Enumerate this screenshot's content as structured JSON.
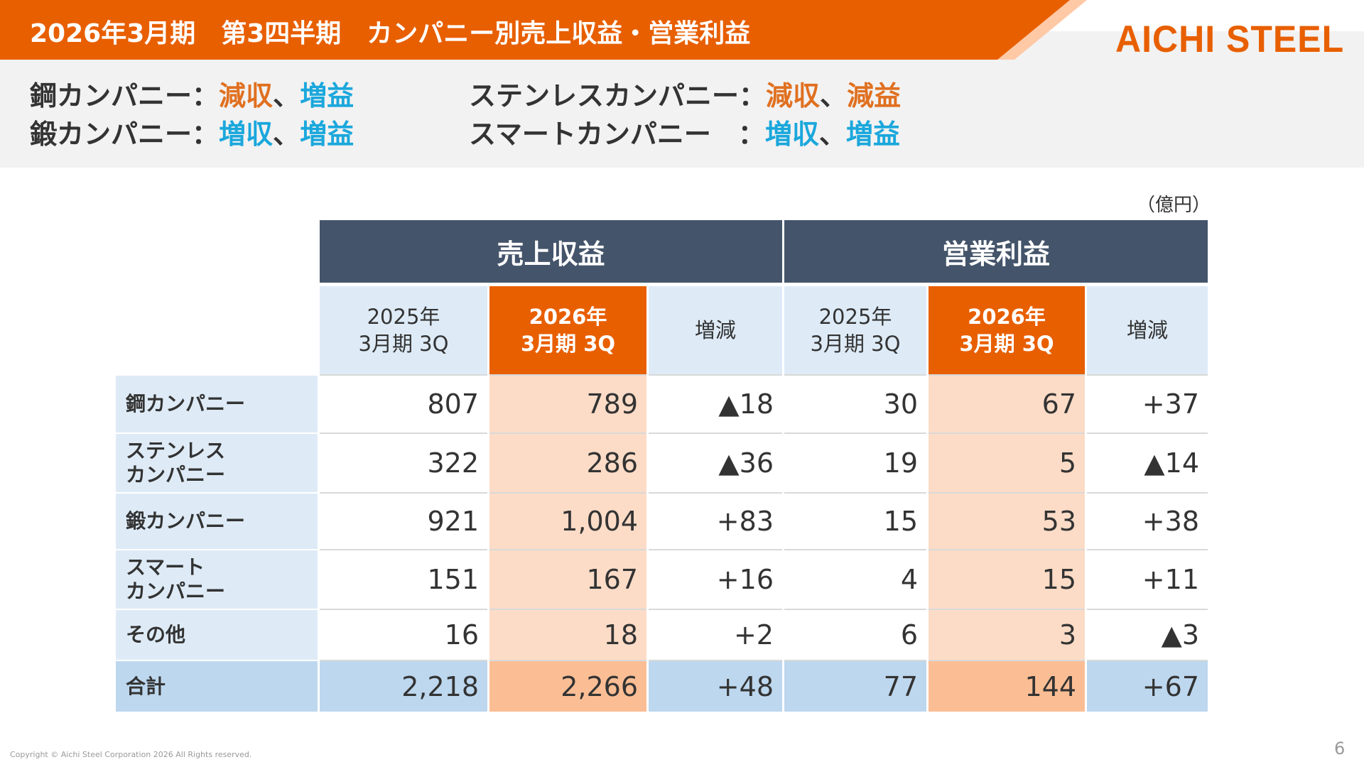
{
  "header": {
    "title": "2026年3月期　第3四半期　カンパニー別売上収益・営業利益",
    "logo": "AICHI STEEL",
    "accent": "#e85f00"
  },
  "summary": [
    {
      "company": "鋼カンパニー",
      "sep": "：",
      "revenue": "減収",
      "comma": "、",
      "profit": "増益",
      "revenue_trend": "down",
      "profit_trend": "up"
    },
    {
      "company": "ステンレスカンパニー",
      "sep": "：",
      "revenue": "減収",
      "comma": "、",
      "profit": "減益",
      "revenue_trend": "down",
      "profit_trend": "down"
    },
    {
      "company": "鍛カンパニー",
      "sep": "：",
      "revenue": "増収",
      "comma": "、",
      "profit": "増益",
      "revenue_trend": "up",
      "profit_trend": "up"
    },
    {
      "company": "スマートカンパニー",
      "sep": "：",
      "revenue": "増収",
      "comma": "、",
      "profit": "増益",
      "revenue_trend": "up",
      "profit_trend": "up"
    }
  ],
  "unit": "（億円）",
  "table": {
    "groups": [
      "売上収益",
      "営業利益"
    ],
    "cols": [
      {
        "l1": "2025年",
        "l2": "3月期 3Q"
      },
      {
        "l1": "2026年",
        "l2": "3月期 3Q"
      },
      {
        "l1": "増減",
        "l2": ""
      },
      {
        "l1": "2025年",
        "l2": "3月期 3Q"
      },
      {
        "l1": "2026年",
        "l2": "3月期 3Q"
      },
      {
        "l1": "増減",
        "l2": ""
      }
    ],
    "rows": [
      {
        "l1": "鋼カンパニー",
        "l2": "",
        "v": [
          "807",
          "789",
          "▲18",
          "30",
          "67",
          "+37"
        ]
      },
      {
        "l1": "ステンレス",
        "l2": "カンパニー",
        "v": [
          "322",
          "286",
          "▲36",
          "19",
          "5",
          "▲14"
        ]
      },
      {
        "l1": "鍛カンパニー",
        "l2": "",
        "v": [
          "921",
          "1,004",
          "+83",
          "15",
          "53",
          "+38"
        ]
      },
      {
        "l1": "スマート",
        "l2": "カンパニー",
        "v": [
          "151",
          "167",
          "+16",
          "4",
          "15",
          "+11"
        ]
      },
      {
        "l1": "その他",
        "l2": "",
        "v": [
          "16",
          "18",
          "+2",
          "6",
          "3",
          "▲3"
        ]
      },
      {
        "l1": "合計",
        "l2": "",
        "v": [
          "2,218",
          "2,266",
          "+48",
          "77",
          "144",
          "+67"
        ]
      }
    ]
  },
  "footer": {
    "copyright": "Copyright © Aichi Steel Corporation 2026 All Rights reserved.",
    "page": "6"
  }
}
